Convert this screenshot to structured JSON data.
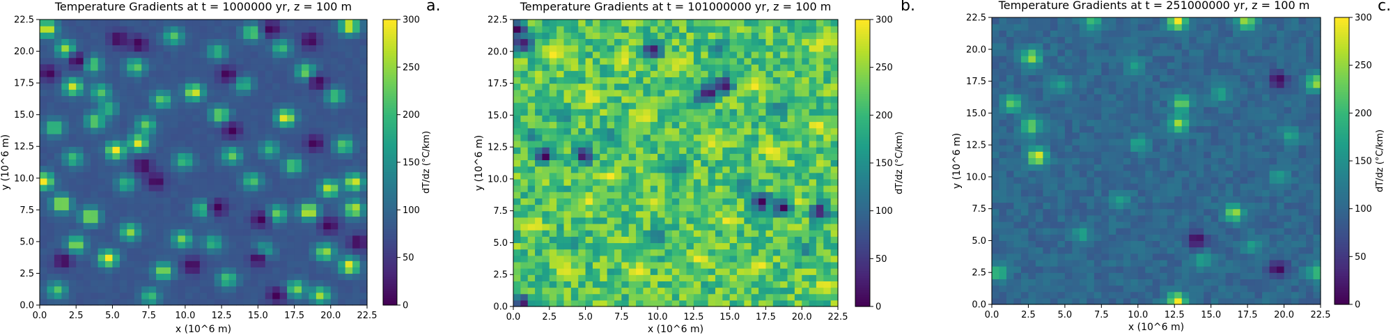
{
  "colorscale": {
    "name": "viridis",
    "stops": [
      "#440154",
      "#482878",
      "#3e4a89",
      "#31688e",
      "#26828e",
      "#1f9e89",
      "#35b779",
      "#6ece58",
      "#b5de2b",
      "#fde725"
    ]
  },
  "chart_data": [
    {
      "type": "heatmap",
      "panel_letter": "a.",
      "title": "Temperature Gradients at t = 1000000 yr, z = 100 m",
      "xlabel": "x (10^6 m)",
      "ylabel": "y (10^6 m)",
      "colorbar_label": "dT/dz (°C/km)",
      "xlim": [
        0,
        22.5
      ],
      "ylim": [
        0,
        22.5
      ],
      "clim": [
        0,
        300
      ],
      "xticks": [
        "0.0",
        "2.5",
        "5.0",
        "7.5",
        "10.0",
        "12.5",
        "15.0",
        "17.5",
        "20.0",
        "22.5"
      ],
      "yticks": [
        "0.0",
        "2.5",
        "5.0",
        "7.5",
        "10.0",
        "12.5",
        "15.0",
        "17.5",
        "20.0",
        "22.5"
      ],
      "cbticks": [
        "0",
        "50",
        "100",
        "150",
        "200",
        "250",
        "300"
      ],
      "grid_n": 45,
      "field": {
        "background": 80,
        "noise": 6,
        "hotspots": [
          {
            "x": 0.5,
            "y": 21.8,
            "v": 300
          },
          {
            "x": 1.8,
            "y": 20.2,
            "v": 260
          },
          {
            "x": 2.3,
            "y": 17.2,
            "v": 280
          },
          {
            "x": 3.6,
            "y": 19.0,
            "v": 240
          },
          {
            "x": 4.2,
            "y": 16.8,
            "v": 220
          },
          {
            "x": 1.0,
            "y": 14.0,
            "v": 230
          },
          {
            "x": 3.8,
            "y": 14.5,
            "v": 240
          },
          {
            "x": 5.2,
            "y": 12.2,
            "v": 300
          },
          {
            "x": 6.8,
            "y": 12.8,
            "v": 290
          },
          {
            "x": 7.3,
            "y": 14.2,
            "v": 230
          },
          {
            "x": 4.7,
            "y": 15.5,
            "v": 200
          },
          {
            "x": 0.3,
            "y": 9.8,
            "v": 300
          },
          {
            "x": 1.5,
            "y": 8.0,
            "v": 290
          },
          {
            "x": 3.5,
            "y": 7.0,
            "v": 280
          },
          {
            "x": 2.5,
            "y": 4.8,
            "v": 260
          },
          {
            "x": 4.7,
            "y": 3.7,
            "v": 300
          },
          {
            "x": 6.2,
            "y": 5.8,
            "v": 250
          },
          {
            "x": 8.5,
            "y": 2.7,
            "v": 260
          },
          {
            "x": 9.8,
            "y": 5.2,
            "v": 240
          },
          {
            "x": 11.2,
            "y": 7.6,
            "v": 220
          },
          {
            "x": 10.6,
            "y": 16.8,
            "v": 290
          },
          {
            "x": 12.4,
            "y": 15.0,
            "v": 250
          },
          {
            "x": 13.2,
            "y": 11.8,
            "v": 230
          },
          {
            "x": 14.6,
            "y": 9.8,
            "v": 220
          },
          {
            "x": 16.3,
            "y": 7.2,
            "v": 240
          },
          {
            "x": 16.9,
            "y": 14.8,
            "v": 300
          },
          {
            "x": 17.4,
            "y": 11.0,
            "v": 230
          },
          {
            "x": 18.5,
            "y": 7.4,
            "v": 300
          },
          {
            "x": 19.9,
            "y": 9.2,
            "v": 280
          },
          {
            "x": 21.6,
            "y": 9.7,
            "v": 290
          },
          {
            "x": 21.6,
            "y": 7.6,
            "v": 280
          },
          {
            "x": 21.3,
            "y": 3.1,
            "v": 300
          },
          {
            "x": 19.6,
            "y": 4.2,
            "v": 260
          },
          {
            "x": 20.9,
            "y": 12.6,
            "v": 230
          },
          {
            "x": 20.3,
            "y": 16.5,
            "v": 220
          },
          {
            "x": 18.3,
            "y": 18.4,
            "v": 250
          },
          {
            "x": 16.6,
            "y": 20.3,
            "v": 210
          },
          {
            "x": 14.6,
            "y": 21.5,
            "v": 240
          },
          {
            "x": 21.3,
            "y": 22.0,
            "v": 300
          },
          {
            "x": 12.2,
            "y": 20.0,
            "v": 200
          },
          {
            "x": 9.2,
            "y": 21.2,
            "v": 220
          },
          {
            "x": 6.6,
            "y": 18.8,
            "v": 230
          },
          {
            "x": 12.9,
            "y": 2.1,
            "v": 220
          },
          {
            "x": 15.4,
            "y": 4.3,
            "v": 210
          },
          {
            "x": 17.6,
            "y": 1.3,
            "v": 250
          },
          {
            "x": 19.3,
            "y": 0.8,
            "v": 260
          },
          {
            "x": 7.6,
            "y": 0.7,
            "v": 210
          },
          {
            "x": 1.2,
            "y": 1.2,
            "v": 220
          },
          {
            "x": 5.9,
            "y": 9.6,
            "v": 200
          },
          {
            "x": 9.9,
            "y": 11.4,
            "v": 210
          },
          {
            "x": 2.3,
            "y": 11.6,
            "v": 210
          },
          {
            "x": 14.0,
            "y": 17.4,
            "v": 200
          },
          {
            "x": 8.4,
            "y": 16.2,
            "v": 230
          },
          {
            "x": 15.8,
            "y": 12.3,
            "v": 200
          },
          {
            "x": 11.9,
            "y": 4.9,
            "v": 200
          }
        ],
        "coldspots": [
          {
            "x": 2.6,
            "y": 19.3,
            "v": 0
          },
          {
            "x": 6.8,
            "y": 20.6,
            "v": 0
          },
          {
            "x": 15.9,
            "y": 21.8,
            "v": 0
          },
          {
            "x": 18.6,
            "y": 20.9,
            "v": 0
          },
          {
            "x": 19.1,
            "y": 17.6,
            "v": 0
          },
          {
            "x": 13.2,
            "y": 13.8,
            "v": 0
          },
          {
            "x": 18.9,
            "y": 12.8,
            "v": 0
          },
          {
            "x": 7.1,
            "y": 11.0,
            "v": 0
          },
          {
            "x": 12.2,
            "y": 7.7,
            "v": 0
          },
          {
            "x": 19.9,
            "y": 6.3,
            "v": 0
          },
          {
            "x": 21.9,
            "y": 5.0,
            "v": 0
          },
          {
            "x": 10.5,
            "y": 3.1,
            "v": 0
          },
          {
            "x": 15.2,
            "y": 6.8,
            "v": 0
          },
          {
            "x": 8.0,
            "y": 9.8,
            "v": 0
          },
          {
            "x": 1.6,
            "y": 3.5,
            "v": 0
          },
          {
            "x": 0.6,
            "y": 18.3,
            "v": 0
          },
          {
            "x": 12.9,
            "y": 18.2,
            "v": 0
          },
          {
            "x": 15.0,
            "y": 3.7,
            "v": 0
          },
          {
            "x": 5.4,
            "y": 21.0,
            "v": 0
          },
          {
            "x": 16.3,
            "y": 0.8,
            "v": 0
          }
        ]
      }
    },
    {
      "type": "heatmap",
      "panel_letter": "b.",
      "title": "Temperature Gradients at t = 101000000 yr, z = 100 m",
      "xlabel": "x (10^6 m)",
      "ylabel": "y (10^6 m)",
      "colorbar_label": "dT/dz (°C/km)",
      "xlim": [
        0,
        22.5
      ],
      "ylim": [
        0,
        22.5
      ],
      "clim": [
        0,
        300
      ],
      "xticks": [
        "0.0",
        "2.5",
        "5.0",
        "7.5",
        "10.0",
        "12.5",
        "15.0",
        "17.5",
        "20.0",
        "22.5"
      ],
      "yticks": [
        "0.0",
        "2.5",
        "5.0",
        "7.5",
        "10.0",
        "12.5",
        "15.0",
        "17.5",
        "20.0",
        "22.5"
      ],
      "cbticks": [
        "0",
        "50",
        "100",
        "150",
        "200",
        "250",
        "300"
      ],
      "grid_n": 45,
      "field": {
        "background": 215,
        "noise": 55,
        "hotspots": [
          {
            "x": 2.8,
            "y": 19.7,
            "v": 300
          },
          {
            "x": 7.6,
            "y": 19.4,
            "v": 300
          },
          {
            "x": 21.2,
            "y": 20.5,
            "v": 300
          },
          {
            "x": 11.4,
            "y": 19.0,
            "v": 290
          },
          {
            "x": 16.7,
            "y": 17.4,
            "v": 300
          },
          {
            "x": 5.4,
            "y": 16.4,
            "v": 300
          },
          {
            "x": 21.0,
            "y": 14.2,
            "v": 300
          },
          {
            "x": 18.0,
            "y": 12.2,
            "v": 300
          },
          {
            "x": 13.7,
            "y": 12.8,
            "v": 290
          },
          {
            "x": 9.0,
            "y": 14.8,
            "v": 300
          },
          {
            "x": 2.5,
            "y": 11.2,
            "v": 300
          },
          {
            "x": 6.8,
            "y": 10.2,
            "v": 300
          },
          {
            "x": 1.5,
            "y": 6.4,
            "v": 300
          },
          {
            "x": 5.2,
            "y": 8.4,
            "v": 300
          },
          {
            "x": 9.6,
            "y": 8.2,
            "v": 290
          },
          {
            "x": 15.0,
            "y": 6.8,
            "v": 300
          },
          {
            "x": 19.6,
            "y": 8.2,
            "v": 300
          },
          {
            "x": 13.0,
            "y": 3.8,
            "v": 300
          },
          {
            "x": 17.0,
            "y": 3.2,
            "v": 300
          },
          {
            "x": 8.6,
            "y": 2.8,
            "v": 300
          },
          {
            "x": 3.6,
            "y": 2.8,
            "v": 290
          },
          {
            "x": 21.6,
            "y": 1.6,
            "v": 300
          },
          {
            "x": 0.6,
            "y": 0.8,
            "v": 300
          }
        ],
        "coldspots": [
          {
            "x": 11.5,
            "y": 10.8,
            "v": 110
          },
          {
            "x": 10.0,
            "y": 5.5,
            "v": 110
          },
          {
            "x": 3.5,
            "y": 15.0,
            "v": 120
          },
          {
            "x": 18.5,
            "y": 15.5,
            "v": 110
          },
          {
            "x": 6.6,
            "y": 13.4,
            "v": 125
          },
          {
            "x": 16.0,
            "y": 9.6,
            "v": 125
          },
          {
            "x": 12.8,
            "y": 16.2,
            "v": 120
          },
          {
            "x": 4.2,
            "y": 5.0,
            "v": 130
          },
          {
            "x": 20.2,
            "y": 4.5,
            "v": 120
          },
          {
            "x": 1.2,
            "y": 13.4,
            "v": 120
          },
          {
            "x": 14.3,
            "y": 20.2,
            "v": 115
          },
          {
            "x": 0.3,
            "y": 21.8,
            "v": 0
          },
          {
            "x": 0.6,
            "y": 20.6,
            "v": 0
          },
          {
            "x": 14.6,
            "y": 17.4,
            "v": 0
          },
          {
            "x": 9.6,
            "y": 20.1,
            "v": 0
          },
          {
            "x": 2.2,
            "y": 11.8,
            "v": 0
          },
          {
            "x": 18.7,
            "y": 7.8,
            "v": 0
          },
          {
            "x": 21.2,
            "y": 7.5,
            "v": 0
          },
          {
            "x": 17.2,
            "y": 8.2,
            "v": 0
          },
          {
            "x": 13.5,
            "y": 16.8,
            "v": 0
          },
          {
            "x": 0.6,
            "y": 0.4,
            "v": 0
          },
          {
            "x": 4.9,
            "y": 11.9,
            "v": 0
          }
        ]
      }
    },
    {
      "type": "heatmap",
      "panel_letter": "c.",
      "title": "Temperature Gradients at t = 251000000 yr, z = 100 m",
      "xlabel": "x (10^6 m)",
      "ylabel": "y (10^6 m)",
      "colorbar_label": "dT/dz (°C/km)",
      "xlim": [
        0,
        22.5
      ],
      "ylim": [
        0,
        22.5
      ],
      "clim": [
        0,
        300
      ],
      "xticks": [
        "0.0",
        "2.5",
        "5.0",
        "7.5",
        "10.0",
        "12.5",
        "15.0",
        "17.5",
        "20.0",
        "22.5"
      ],
      "yticks": [
        "0.0",
        "2.5",
        "5.0",
        "7.5",
        "10.0",
        "12.5",
        "15.0",
        "17.5",
        "20.0",
        "22.5"
      ],
      "cbticks": [
        "0",
        "50",
        "100",
        "150",
        "200",
        "250",
        "300"
      ],
      "grid_n": 45,
      "field": {
        "background": 100,
        "noise": 18,
        "hotspots": [
          {
            "x": 3.1,
            "y": 11.6,
            "v": 300
          },
          {
            "x": 12.7,
            "y": 22.2,
            "v": 300
          },
          {
            "x": 12.7,
            "y": 0.3,
            "v": 300
          },
          {
            "x": 2.7,
            "y": 19.4,
            "v": 260
          },
          {
            "x": 1.4,
            "y": 15.8,
            "v": 230
          },
          {
            "x": 2.7,
            "y": 14.0,
            "v": 240
          },
          {
            "x": 12.8,
            "y": 14.2,
            "v": 260
          },
          {
            "x": 13.0,
            "y": 15.8,
            "v": 240
          },
          {
            "x": 16.6,
            "y": 7.2,
            "v": 260
          },
          {
            "x": 22.2,
            "y": 17.4,
            "v": 260
          },
          {
            "x": 17.4,
            "y": 22.2,
            "v": 260
          },
          {
            "x": 6.9,
            "y": 22.2,
            "v": 210
          },
          {
            "x": 0.4,
            "y": 2.5,
            "v": 210
          },
          {
            "x": 22.2,
            "y": 2.5,
            "v": 210
          },
          {
            "x": 10.0,
            "y": 12.6,
            "v": 180
          },
          {
            "x": 15.7,
            "y": 16.5,
            "v": 180
          },
          {
            "x": 6.2,
            "y": 5.5,
            "v": 180
          },
          {
            "x": 19.6,
            "y": 10.1,
            "v": 170
          },
          {
            "x": 8.8,
            "y": 8.2,
            "v": 170
          },
          {
            "x": 14.4,
            "y": 3.5,
            "v": 180
          },
          {
            "x": 20.4,
            "y": 13.3,
            "v": 180
          },
          {
            "x": 4.7,
            "y": 17.2,
            "v": 170
          },
          {
            "x": 9.8,
            "y": 18.8,
            "v": 170
          },
          {
            "x": 17.8,
            "y": 4.6,
            "v": 170
          }
        ],
        "coldspots": [
          {
            "x": 19.6,
            "y": 17.6,
            "v": 0
          },
          {
            "x": 19.6,
            "y": 2.8,
            "v": 0
          },
          {
            "x": 14.0,
            "y": 5.1,
            "v": 0
          }
        ]
      }
    }
  ]
}
